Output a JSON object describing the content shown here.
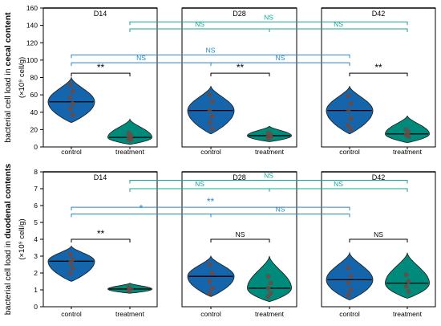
{
  "colors": {
    "control": "#1565ad",
    "treatment": "#008a7c",
    "cmp_control": "#2b87c5",
    "cmp_treatment": "#1aa496",
    "dot": "#6b4a44",
    "axis": "#000000"
  },
  "chart_data": [
    {
      "type": "violin",
      "ylabel_prefix": "bacterial cell load in",
      "ylabel_bold": "cecal content",
      "ylabel_unit": "(×10⁹ cell/g)",
      "ylim": [
        0,
        160
      ],
      "yticks": [
        "0",
        "20",
        "40",
        "60",
        "80",
        "100",
        "120",
        "140",
        "160"
      ],
      "panels": [
        {
          "label": "D14",
          "groups": [
            {
              "name": "control",
              "median": 52,
              "min": 28,
              "max": 80,
              "points": [
                72,
                64,
                57,
                50,
                44,
                37
              ]
            },
            {
              "name": "treatment",
              "median": 11,
              "min": 3,
              "max": 32,
              "points": [
                16,
                13,
                11,
                9,
                8
              ]
            }
          ]
        },
        {
          "label": "D28",
          "groups": [
            {
              "name": "control",
              "median": 42,
              "min": 15,
              "max": 70,
              "points": [
                60,
                52,
                42,
                35,
                28,
                21
              ]
            },
            {
              "name": "treatment",
              "median": 13,
              "min": 6,
              "max": 24,
              "points": [
                16,
                14,
                12,
                11,
                10
              ]
            }
          ]
        },
        {
          "label": "D42",
          "groups": [
            {
              "name": "control",
              "median": 42,
              "min": 15,
              "max": 70,
              "points": [
                59,
                50,
                42,
                33,
                25,
                20
              ]
            },
            {
              "name": "treatment",
              "median": 15,
              "min": 5,
              "max": 36,
              "points": [
                20,
                17,
                14,
                12
              ]
            }
          ]
        }
      ],
      "comparisons": [
        {
          "from": [
            0,
            1
          ],
          "to": [
            1,
            1
          ],
          "y": 136,
          "label": "NS",
          "color": "treatment"
        },
        {
          "from": [
            1,
            1
          ],
          "to": [
            2,
            1
          ],
          "y": 136,
          "label": "NS",
          "color": "treatment"
        },
        {
          "from": [
            0,
            1
          ],
          "to": [
            2,
            1
          ],
          "y": 144,
          "label": "NS",
          "color": "treatment"
        },
        {
          "from": [
            0,
            0
          ],
          "to": [
            1,
            0
          ],
          "y": 97,
          "label": "NS",
          "color": "control"
        },
        {
          "from": [
            1,
            0
          ],
          "to": [
            2,
            0
          ],
          "y": 97,
          "label": "NS",
          "color": "control"
        },
        {
          "from": [
            0,
            0
          ],
          "to": [
            2,
            0
          ],
          "y": 106,
          "label": "NS",
          "color": "control"
        },
        {
          "from": [
            0,
            0
          ],
          "to": [
            0,
            1
          ],
          "y": 85,
          "label": "**",
          "color": "axis"
        },
        {
          "from": [
            1,
            0
          ],
          "to": [
            1,
            1
          ],
          "y": 85,
          "label": "**",
          "color": "axis"
        },
        {
          "from": [
            2,
            0
          ],
          "to": [
            2,
            1
          ],
          "y": 85,
          "label": "**",
          "color": "axis"
        }
      ]
    },
    {
      "type": "violin",
      "ylabel_prefix": "bacterial cell load in",
      "ylabel_bold": "duodenal contents",
      "ylabel_unit": "(×10⁹ cell/g)",
      "ylim": [
        0,
        8
      ],
      "yticks": [
        "0",
        "1",
        "2",
        "3",
        "4",
        "5",
        "6",
        "7",
        "8"
      ],
      "panels": [
        {
          "label": "D14",
          "groups": [
            {
              "name": "control",
              "median": 2.7,
              "min": 1.5,
              "max": 3.6,
              "points": [
                3.1,
                2.8,
                2.6,
                2.3,
                2.0
              ]
            },
            {
              "name": "treatment",
              "median": 1.05,
              "min": 0.8,
              "max": 1.4,
              "points": [
                1.15,
                1.05,
                0.95
              ]
            }
          ]
        },
        {
          "label": "D28",
          "groups": [
            {
              "name": "control",
              "median": 1.8,
              "min": 0.6,
              "max": 3.0,
              "points": [
                2.5,
                2.0,
                1.5,
                1.1,
                0.8
              ]
            },
            {
              "name": "treatment",
              "median": 1.1,
              "min": 0.3,
              "max": 3.0,
              "points": [
                1.8,
                1.4,
                1.1,
                0.8,
                0.6
              ]
            }
          ]
        },
        {
          "label": "D42",
          "groups": [
            {
              "name": "control",
              "median": 1.6,
              "min": 0.4,
              "max": 3.2,
              "points": [
                2.3,
                1.8,
                1.4,
                1.0,
                0.7
              ]
            },
            {
              "name": "treatment",
              "median": 1.4,
              "min": 0.5,
              "max": 3.2,
              "points": [
                1.9,
                1.5,
                1.2,
                0.9
              ]
            }
          ]
        }
      ],
      "comparisons": [
        {
          "from": [
            0,
            1
          ],
          "to": [
            1,
            1
          ],
          "y": 7.0,
          "label": "NS",
          "color": "treatment"
        },
        {
          "from": [
            1,
            1
          ],
          "to": [
            2,
            1
          ],
          "y": 7.0,
          "label": "NS",
          "color": "treatment"
        },
        {
          "from": [
            0,
            1
          ],
          "to": [
            2,
            1
          ],
          "y": 7.5,
          "label": "NS",
          "color": "treatment"
        },
        {
          "from": [
            0,
            0
          ],
          "to": [
            1,
            0
          ],
          "y": 5.5,
          "label": "*",
          "color": "control"
        },
        {
          "from": [
            1,
            0
          ],
          "to": [
            2,
            0
          ],
          "y": 5.5,
          "label": "NS",
          "color": "control"
        },
        {
          "from": [
            0,
            0
          ],
          "to": [
            2,
            0
          ],
          "y": 5.9,
          "label": "**",
          "color": "control"
        },
        {
          "from": [
            0,
            0
          ],
          "to": [
            0,
            1
          ],
          "y": 4.0,
          "label": "**",
          "color": "axis"
        },
        {
          "from": [
            1,
            0
          ],
          "to": [
            1,
            1
          ],
          "y": 4.0,
          "label": "NS",
          "color": "axis"
        },
        {
          "from": [
            2,
            0
          ],
          "to": [
            2,
            1
          ],
          "y": 4.0,
          "label": "NS",
          "color": "axis"
        }
      ]
    }
  ]
}
